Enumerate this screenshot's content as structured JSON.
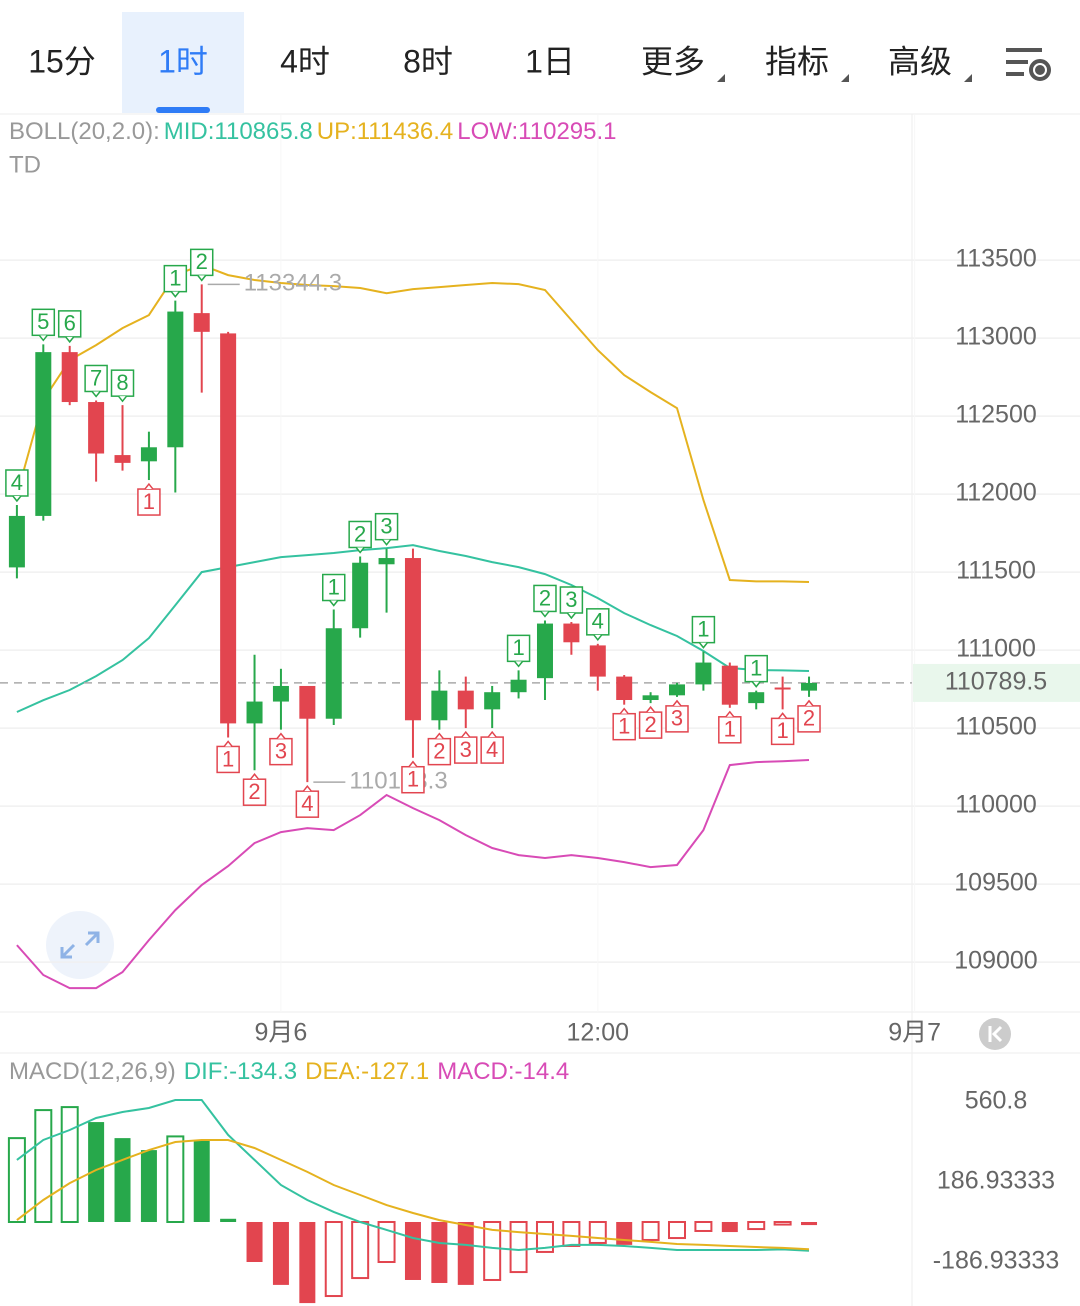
{
  "tabs": [
    "15分",
    "1时",
    "4时",
    "8时",
    "1日",
    "更多",
    "指标",
    "高级"
  ],
  "active_tab": 1,
  "chart_data": [
    {
      "type": "candlestick",
      "title": "BOLL(20,2.0):",
      "subtitle": "TD",
      "open": [
        111530,
        111860,
        112910,
        112590,
        112250,
        112210,
        112300,
        113160,
        113030,
        110530,
        110670,
        110770,
        110560,
        111140,
        111550,
        111590,
        110550,
        110740,
        110620,
        110730,
        110820,
        111170,
        111030,
        110830,
        110680,
        110710,
        110780,
        110900,
        110660,
        110760,
        110740
      ],
      "high": [
        111930,
        112960,
        112950,
        112600,
        112570,
        112400,
        113240,
        113344.3,
        113040,
        110970,
        110880,
        110770,
        111260,
        111600,
        111650,
        111650,
        110870,
        110830,
        110770,
        110870,
        111190,
        111180,
        111040,
        110840,
        110730,
        110790,
        110990,
        110920,
        110740,
        110830,
        110830
      ],
      "low": [
        111460,
        111830,
        112570,
        112080,
        112150,
        112090,
        112010,
        112650,
        110440,
        110230,
        110490,
        110153.3,
        110520,
        111080,
        111240,
        110310,
        110490,
        110500,
        110500,
        110690,
        110680,
        110970,
        110740,
        110650,
        110660,
        110700,
        110740,
        110630,
        110620,
        110620,
        110700
      ],
      "close": [
        111860,
        112910,
        112590,
        112260,
        112200,
        112300,
        113170,
        113040,
        110530,
        110670,
        110770,
        110560,
        111140,
        111560,
        111590,
        110550,
        110740,
        110620,
        110730,
        110810,
        111170,
        111050,
        110830,
        110680,
        110710,
        110780,
        110920,
        110650,
        110730,
        110750,
        110789.5
      ],
      "up_color": "#27a84b",
      "down_color": "#e2454f",
      "series": [
        {
          "name": "MID",
          "label": "MID:110865.8",
          "color": "#35c2a0",
          "values": [
            110603,
            110679,
            110744,
            110833,
            110936,
            111077,
            111288,
            111500,
            111532,
            111564,
            111596,
            111609,
            111622,
            111641,
            111654,
            111673,
            111635,
            111603,
            111564,
            111532,
            111487,
            111417,
            111333,
            111237,
            111160,
            111090,
            110994,
            110885,
            110872,
            110870,
            110865.8
          ]
        },
        {
          "name": "UP",
          "label": "UP:111436.4",
          "color": "#e5b21f",
          "values": [
            111994,
            112603,
            112859,
            112955,
            113064,
            113147,
            113404,
            113468,
            113404,
            113372,
            113353,
            113340,
            113333,
            113321,
            113288,
            113314,
            113327,
            113340,
            113353,
            113346,
            113308,
            113115,
            112923,
            112763,
            112654,
            112551,
            111962,
            111449,
            111440,
            111440,
            111436.4
          ]
        },
        {
          "name": "LOW",
          "label": "LOW:110295.1",
          "color": "#d84bb6",
          "values": [
            109109,
            108917,
            108833,
            108833,
            108936,
            109141,
            109333,
            109494,
            109615,
            109763,
            109833,
            109859,
            109846,
            109942,
            110071,
            109987,
            109910,
            109814,
            109731,
            109686,
            109667,
            109686,
            109667,
            109641,
            109609,
            109622,
            109846,
            110263,
            110282,
            110288,
            110295.1
          ]
        }
      ],
      "annotations": [
        {
          "x": 7,
          "value": 113344.3
        },
        {
          "x": 11,
          "value": 110153.3
        }
      ],
      "td": [
        {
          "x": 0,
          "label": 4,
          "position": "above"
        },
        {
          "x": 1,
          "label": 5,
          "position": "above"
        },
        {
          "x": 2,
          "label": 6,
          "position": "above"
        },
        {
          "x": 3,
          "label": 7,
          "position": "above"
        },
        {
          "x": 4,
          "label": 8,
          "position": "above"
        },
        {
          "x": 5,
          "label": 1,
          "position": "below"
        },
        {
          "x": 6,
          "label": 1,
          "position": "above"
        },
        {
          "x": 7,
          "label": 2,
          "position": "above"
        },
        {
          "x": 8,
          "label": 1,
          "position": "below"
        },
        {
          "x": 9,
          "label": 2,
          "position": "below"
        },
        {
          "x": 10,
          "label": 3,
          "position": "below"
        },
        {
          "x": 11,
          "label": 4,
          "position": "below"
        },
        {
          "x": 12,
          "label": 1,
          "position": "above"
        },
        {
          "x": 13,
          "label": 2,
          "position": "above"
        },
        {
          "x": 14,
          "label": 3,
          "position": "above"
        },
        {
          "x": 15,
          "label": 1,
          "position": "below"
        },
        {
          "x": 16,
          "label": 2,
          "position": "below"
        },
        {
          "x": 17,
          "label": 3,
          "position": "below"
        },
        {
          "x": 18,
          "label": 4,
          "position": "below"
        },
        {
          "x": 19,
          "label": 1,
          "position": "above"
        },
        {
          "x": 20,
          "label": 2,
          "position": "above"
        },
        {
          "x": 21,
          "label": 3,
          "position": "above"
        },
        {
          "x": 22,
          "label": 4,
          "position": "above"
        },
        {
          "x": 23,
          "label": 1,
          "position": "below"
        },
        {
          "x": 24,
          "label": 2,
          "position": "below"
        },
        {
          "x": 25,
          "label": 3,
          "position": "below"
        },
        {
          "x": 26,
          "label": 1,
          "position": "above"
        },
        {
          "x": 27,
          "label": 1,
          "position": "below"
        },
        {
          "x": 28,
          "label": 1,
          "position": "above"
        },
        {
          "x": 29,
          "label": 1,
          "position": "below"
        },
        {
          "x": 30,
          "label": 2,
          "position": "below"
        }
      ],
      "last_price": 110789.5,
      "ylim": [
        108680,
        114430
      ],
      "yticks": [
        109000,
        109500,
        110000,
        110500,
        111000,
        111500,
        112000,
        112500,
        113000,
        113500
      ],
      "xlim": [
        -0.64,
        33.9
      ],
      "xticks": [
        {
          "value": 10,
          "label": "9月6"
        },
        {
          "value": 22,
          "label": "12:00"
        },
        {
          "value": 34,
          "label": "9月7"
        }
      ],
      "grid": true
    },
    {
      "type": "macd",
      "title": "MACD(12,26,9)",
      "macd_label": "MACD:-14.4",
      "values": [
        392,
        523,
        537,
        467,
        392,
        336,
        400,
        383,
        15,
        -187,
        -294,
        -379,
        -346,
        -262,
        -187,
        -271,
        -285,
        -294,
        -271,
        -234,
        -140,
        -112,
        -98,
        -107,
        -84,
        -75,
        -42,
        -47,
        -33,
        -12,
        -14.4
      ],
      "up_color": "#27a84b",
      "down_color": "#e2454f",
      "series": [
        {
          "name": "DIF",
          "label": "DIF:-134.3",
          "color": "#35c2a0",
          "values": [
            290,
            383,
            430,
            486,
            514,
            533,
            570,
            570,
            407,
            290,
            173,
            103,
            47,
            0,
            -37,
            -75,
            -98,
            -107,
            -121,
            -131,
            -121,
            -107,
            -107,
            -112,
            -121,
            -131,
            -131,
            -131,
            -131,
            -128,
            -134.3
          ]
        },
        {
          "name": "DEA",
          "label": "DEA:-127.1",
          "color": "#e5b21f",
          "values": [
            9,
            103,
            182,
            243,
            290,
            336,
            374,
            383,
            383,
            346,
            290,
            234,
            173,
            126,
            79,
            42,
            9,
            -14,
            -37,
            -47,
            -56,
            -65,
            -75,
            -84,
            -93,
            -103,
            -107,
            -112,
            -117,
            -121,
            -127.1
          ]
        }
      ],
      "ylim": [
        -392.6,
        794.5
      ],
      "yticks": [
        560.8,
        186.93333,
        -186.93333
      ]
    }
  ]
}
